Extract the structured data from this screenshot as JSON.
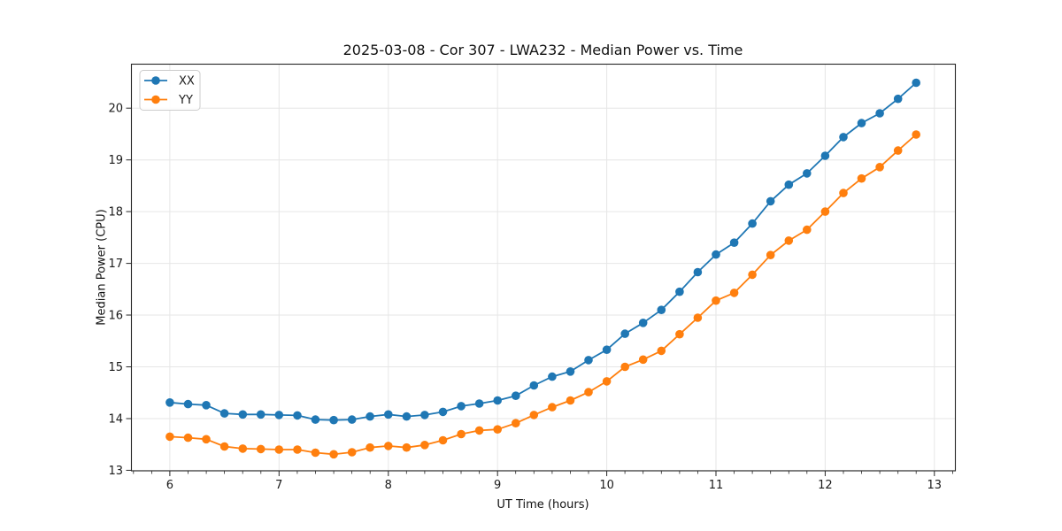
{
  "chart_data": {
    "type": "line",
    "title": "2025-03-08 - Cor 307 - LWA232 - Median Power vs. Time",
    "xlabel": "UT Time (hours)",
    "ylabel": "Median Power (CPU)",
    "xlim": [
      5.648,
      13.192
    ],
    "ylim": [
      12.99,
      20.85
    ],
    "xticks": [
      6,
      7,
      8,
      9,
      10,
      11,
      12,
      13
    ],
    "yticks": [
      13,
      14,
      15,
      16,
      17,
      18,
      19,
      20
    ],
    "x_minor_tick_step_hours": 0.1667,
    "grid": true,
    "grid_color": "#e6e6e6",
    "axis_color": "#262626",
    "legend_position": "upper-left",
    "marker": "circle",
    "x": [
      6.0,
      6.167,
      6.333,
      6.5,
      6.667,
      6.833,
      7.0,
      7.167,
      7.333,
      7.5,
      7.667,
      7.833,
      8.0,
      8.167,
      8.333,
      8.5,
      8.667,
      8.833,
      9.0,
      9.167,
      9.333,
      9.5,
      9.667,
      9.833,
      10.0,
      10.167,
      10.333,
      10.5,
      10.667,
      10.833,
      11.0,
      11.167,
      11.333,
      11.5,
      11.667,
      11.833,
      12.0,
      12.167,
      12.333,
      12.5,
      12.667,
      12.833
    ],
    "series": [
      {
        "name": "XX",
        "color": "#1f77b4",
        "values": [
          14.31,
          14.28,
          14.26,
          14.1,
          14.08,
          14.08,
          14.07,
          14.06,
          13.98,
          13.97,
          13.98,
          14.04,
          14.08,
          14.04,
          14.07,
          14.13,
          14.24,
          14.29,
          14.35,
          14.44,
          14.64,
          14.81,
          14.91,
          15.13,
          15.33,
          15.64,
          15.85,
          16.1,
          16.45,
          16.83,
          17.17,
          17.4,
          17.77,
          18.2,
          18.52,
          18.74,
          19.08,
          19.44,
          19.71,
          19.9,
          20.18,
          20.49
        ]
      },
      {
        "name": "YY",
        "color": "#ff7f0e",
        "values": [
          13.65,
          13.63,
          13.6,
          13.46,
          13.42,
          13.41,
          13.4,
          13.4,
          13.34,
          13.31,
          13.35,
          13.44,
          13.47,
          13.44,
          13.49,
          13.58,
          13.7,
          13.77,
          13.79,
          13.91,
          14.07,
          14.22,
          14.35,
          14.51,
          14.72,
          15.0,
          15.14,
          15.31,
          15.63,
          15.95,
          16.28,
          16.43,
          16.78,
          17.16,
          17.44,
          17.65,
          18.0,
          18.36,
          18.64,
          18.86,
          19.18,
          19.49
        ]
      }
    ]
  }
}
